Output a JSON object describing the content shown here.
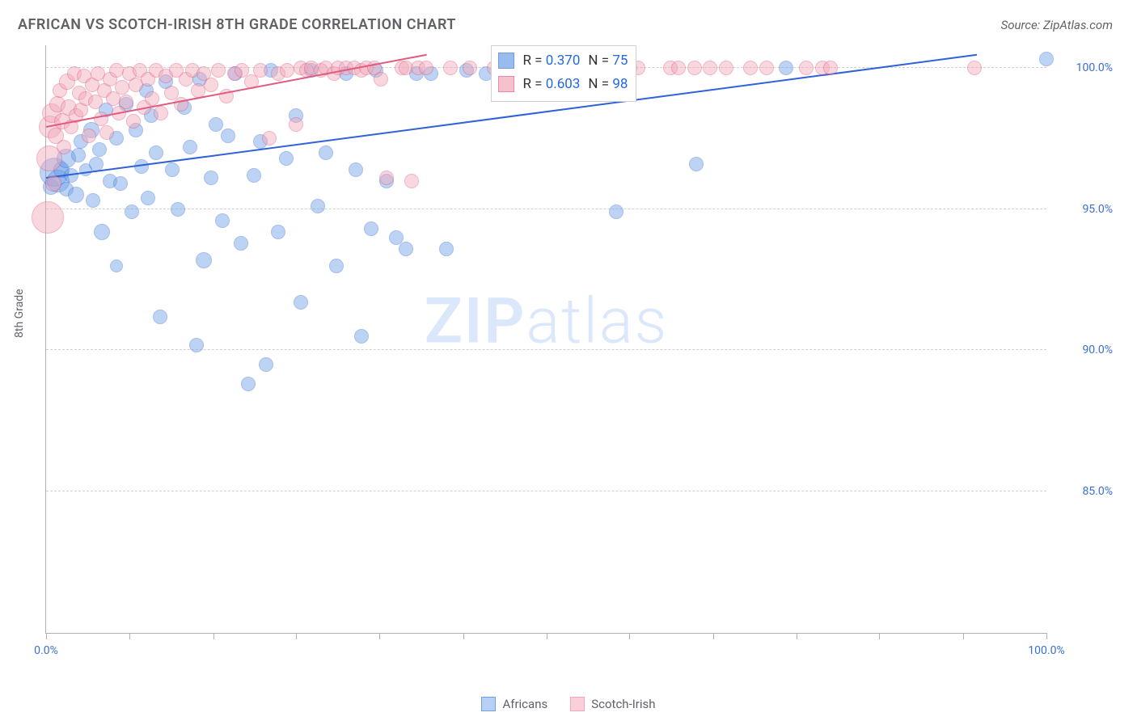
{
  "title": "AFRICAN VS SCOTCH-IRISH 8TH GRADE CORRELATION CHART",
  "source": "Source: ZipAtlas.com",
  "watermark_bold": "ZIP",
  "watermark_rest": "atlas",
  "y_axis_label": "8th Grade",
  "chart": {
    "type": "scatter",
    "xlim": [
      0,
      100
    ],
    "ylim": [
      80,
      100.8
    ],
    "background_color": "#ffffff",
    "grid_color": "#d0d0d0",
    "y_gridlines": [
      85,
      90,
      95,
      100
    ],
    "y_tick_labels": [
      "85.0%",
      "90.0%",
      "95.0%",
      "100.0%"
    ],
    "x_ticks": [
      0,
      8.3,
      16.7,
      25,
      33.3,
      41.7,
      50,
      58.3,
      66.7,
      75,
      83.3,
      91.7,
      100
    ],
    "x_labels": [
      [
        0,
        "0.0%"
      ],
      [
        100,
        "100.0%"
      ]
    ],
    "y_label_color": "#3b6fd6",
    "x_label_color": "#3b6fd6",
    "axis_title_color": "#5f6368",
    "marker_opacity": 0.45,
    "marker_border_opacity": 0.8,
    "base_marker_radius": 9
  },
  "series": [
    {
      "id": "africans",
      "label": "Africans",
      "color": "#6ea0e8",
      "stroke": "#3b6fd6",
      "R_label": "R = ",
      "R": "0.370",
      "N_label": "N = ",
      "N": "75",
      "trend": {
        "x1": 0,
        "y1": 96.15,
        "x2": 93,
        "y2": 100.5,
        "color": "#2f62d9",
        "width": 2
      },
      "points": [
        [
          0.5,
          95.8,
          10
        ],
        [
          0.8,
          96.3,
          18
        ],
        [
          1.2,
          96.0,
          14
        ],
        [
          1.5,
          96.4,
          10
        ],
        [
          2.0,
          96.8,
          12
        ],
        [
          2.0,
          95.7,
          9
        ],
        [
          2.5,
          96.2,
          9
        ],
        [
          3.0,
          95.5,
          10
        ],
        [
          3.2,
          96.9,
          9
        ],
        [
          3.5,
          97.4,
          9
        ],
        [
          4.0,
          96.4,
          8
        ],
        [
          4.5,
          97.8,
          10
        ],
        [
          4.7,
          95.3,
          9
        ],
        [
          5.0,
          96.6,
          9
        ],
        [
          5.3,
          97.1,
          9
        ],
        [
          5.6,
          94.2,
          10
        ],
        [
          6.0,
          98.5,
          9
        ],
        [
          6.4,
          96.0,
          9
        ],
        [
          7.0,
          97.5,
          9
        ],
        [
          7.0,
          93.0,
          8
        ],
        [
          7.4,
          95.9,
          9
        ],
        [
          8.0,
          98.7,
          9
        ],
        [
          8.6,
          94.9,
          9
        ],
        [
          9.0,
          97.8,
          9
        ],
        [
          9.5,
          96.5,
          9
        ],
        [
          10.0,
          99.2,
          9
        ],
        [
          10.2,
          95.4,
          9
        ],
        [
          10.5,
          98.3,
          9
        ],
        [
          11.0,
          97.0,
          9
        ],
        [
          11.4,
          91.2,
          9
        ],
        [
          12.0,
          99.5,
          9
        ],
        [
          12.6,
          96.4,
          9
        ],
        [
          13.2,
          95.0,
          9
        ],
        [
          13.8,
          98.6,
          9
        ],
        [
          14.4,
          97.2,
          9
        ],
        [
          15.0,
          90.2,
          9
        ],
        [
          15.4,
          99.6,
          9
        ],
        [
          15.8,
          93.2,
          10
        ],
        [
          16.5,
          96.1,
          9
        ],
        [
          17.0,
          98.0,
          9
        ],
        [
          17.6,
          94.6,
          9
        ],
        [
          18.2,
          97.6,
          9
        ],
        [
          18.9,
          99.8,
          9
        ],
        [
          19.5,
          93.8,
          9
        ],
        [
          20.2,
          88.8,
          9
        ],
        [
          20.8,
          96.2,
          9
        ],
        [
          21.4,
          97.4,
          9
        ],
        [
          22.0,
          89.5,
          9
        ],
        [
          22.5,
          99.9,
          9
        ],
        [
          23.2,
          94.2,
          9
        ],
        [
          24.0,
          96.8,
          9
        ],
        [
          25.0,
          98.3,
          9
        ],
        [
          25.5,
          91.7,
          9
        ],
        [
          26.5,
          99.9,
          9
        ],
        [
          27.2,
          95.1,
          9
        ],
        [
          28.0,
          97.0,
          9
        ],
        [
          29.0,
          93.0,
          9
        ],
        [
          30.0,
          99.8,
          9
        ],
        [
          31.0,
          96.4,
          9
        ],
        [
          31.5,
          90.5,
          9
        ],
        [
          32.5,
          94.3,
          9
        ],
        [
          33.0,
          99.9,
          9
        ],
        [
          34.0,
          96.0,
          9
        ],
        [
          35.0,
          94.0,
          9
        ],
        [
          36.0,
          93.6,
          9
        ],
        [
          37.0,
          99.8,
          9
        ],
        [
          38.5,
          99.8,
          9
        ],
        [
          40.0,
          93.6,
          9
        ],
        [
          42.0,
          99.9,
          9
        ],
        [
          44.0,
          99.8,
          9
        ],
        [
          48.0,
          99.9,
          9
        ],
        [
          57.0,
          94.9,
          9
        ],
        [
          65.0,
          96.6,
          9
        ],
        [
          74.0,
          100.0,
          9
        ],
        [
          100.0,
          100.3,
          9
        ]
      ]
    },
    {
      "id": "scotch_irish",
      "label": "Scotch-Irish",
      "color": "#f2a8ba",
      "stroke": "#e05b7d",
      "R_label": "R = ",
      "R": "0.603",
      "N_label": "N = ",
      "N": "98",
      "trend": {
        "x1": 0,
        "y1": 97.95,
        "x2": 38,
        "y2": 100.5,
        "color": "#e05b7d",
        "width": 2
      },
      "points": [
        [
          0.2,
          94.7,
          20
        ],
        [
          0.3,
          96.8,
          16
        ],
        [
          0.4,
          97.9,
          14
        ],
        [
          0.6,
          98.4,
          12
        ],
        [
          0.7,
          95.9,
          10
        ],
        [
          1.0,
          97.6,
          10
        ],
        [
          1.1,
          98.7,
          10
        ],
        [
          1.4,
          99.2,
          9
        ],
        [
          1.6,
          98.1,
          10
        ],
        [
          1.8,
          97.2,
          9
        ],
        [
          2.1,
          99.5,
          10
        ],
        [
          2.3,
          98.6,
          10
        ],
        [
          2.5,
          97.9,
          9
        ],
        [
          2.8,
          99.8,
          9
        ],
        [
          3.0,
          98.3,
          9
        ],
        [
          3.3,
          99.1,
          9
        ],
        [
          3.5,
          98.5,
          9
        ],
        [
          3.8,
          99.7,
          9
        ],
        [
          4.0,
          98.9,
          9
        ],
        [
          4.3,
          97.6,
          9
        ],
        [
          4.6,
          99.4,
          9
        ],
        [
          4.9,
          98.8,
          9
        ],
        [
          5.2,
          99.8,
          9
        ],
        [
          5.5,
          98.2,
          9
        ],
        [
          5.8,
          99.2,
          9
        ],
        [
          6.1,
          97.7,
          9
        ],
        [
          6.4,
          99.6,
          9
        ],
        [
          6.7,
          98.9,
          9
        ],
        [
          7.0,
          99.9,
          9
        ],
        [
          7.3,
          98.4,
          9
        ],
        [
          7.6,
          99.3,
          9
        ],
        [
          8.0,
          98.8,
          9
        ],
        [
          8.3,
          99.8,
          9
        ],
        [
          8.7,
          98.1,
          9
        ],
        [
          9.0,
          99.4,
          9
        ],
        [
          9.4,
          99.9,
          9
        ],
        [
          9.8,
          98.6,
          9
        ],
        [
          10.2,
          99.6,
          9
        ],
        [
          10.6,
          98.9,
          9
        ],
        [
          11.0,
          99.9,
          9
        ],
        [
          11.5,
          98.4,
          9
        ],
        [
          12.0,
          99.7,
          9
        ],
        [
          12.5,
          99.1,
          9
        ],
        [
          13.0,
          99.9,
          9
        ],
        [
          13.5,
          98.7,
          9
        ],
        [
          14.0,
          99.6,
          9
        ],
        [
          14.6,
          99.9,
          9
        ],
        [
          15.2,
          99.2,
          9
        ],
        [
          15.8,
          99.8,
          9
        ],
        [
          16.5,
          99.4,
          9
        ],
        [
          17.2,
          99.9,
          9
        ],
        [
          18.0,
          99.0,
          9
        ],
        [
          18.8,
          99.8,
          9
        ],
        [
          19.6,
          99.9,
          9
        ],
        [
          20.5,
          99.5,
          9
        ],
        [
          21.4,
          99.9,
          9
        ],
        [
          22.3,
          97.5,
          9
        ],
        [
          23.2,
          99.8,
          9
        ],
        [
          24.1,
          99.9,
          9
        ],
        [
          25.0,
          98.0,
          9
        ],
        [
          25.5,
          100.0,
          9
        ],
        [
          26.0,
          99.9,
          9
        ],
        [
          26.5,
          100.0,
          9
        ],
        [
          27.5,
          99.9,
          9
        ],
        [
          28.0,
          100.0,
          9
        ],
        [
          28.8,
          99.8,
          9
        ],
        [
          29.2,
          100.0,
          9
        ],
        [
          30.0,
          100.0,
          9
        ],
        [
          30.8,
          100.0,
          9
        ],
        [
          31.5,
          99.9,
          9
        ],
        [
          32.0,
          100.0,
          9
        ],
        [
          32.8,
          100.0,
          9
        ],
        [
          33.5,
          99.6,
          9
        ],
        [
          34.0,
          96.1,
          9
        ],
        [
          35.6,
          100.0,
          9
        ],
        [
          36.0,
          100.0,
          9
        ],
        [
          36.5,
          96.0,
          9
        ],
        [
          37.2,
          100.0,
          9
        ],
        [
          38.0,
          100.0,
          9
        ],
        [
          40.4,
          100.0,
          9
        ],
        [
          42.4,
          100.0,
          9
        ],
        [
          44.8,
          100.0,
          9
        ],
        [
          48.0,
          100.0,
          9
        ],
        [
          52.0,
          100.0,
          9
        ],
        [
          55.2,
          100.0,
          9
        ],
        [
          58.4,
          100.0,
          9
        ],
        [
          59.2,
          100.0,
          9
        ],
        [
          62.4,
          100.0,
          9
        ],
        [
          63.2,
          100.0,
          9
        ],
        [
          64.8,
          100.0,
          9
        ],
        [
          66.4,
          100.0,
          9
        ],
        [
          68.0,
          100.0,
          9
        ],
        [
          70.4,
          100.0,
          9
        ],
        [
          72.0,
          100.0,
          9
        ],
        [
          76.0,
          100.0,
          9
        ],
        [
          77.6,
          100.0,
          9
        ],
        [
          78.4,
          100.0,
          9
        ],
        [
          92.8,
          100.0,
          9
        ]
      ]
    }
  ],
  "legend": {
    "items": [
      {
        "label": "Africans",
        "fill": "#b8d0f5",
        "stroke": "#6ea0e8"
      },
      {
        "label": "Scotch-Irish",
        "fill": "#f9d0da",
        "stroke": "#f2a8ba"
      }
    ]
  },
  "stat_box": {
    "left_pct": 44.5,
    "top_pct": 0
  }
}
